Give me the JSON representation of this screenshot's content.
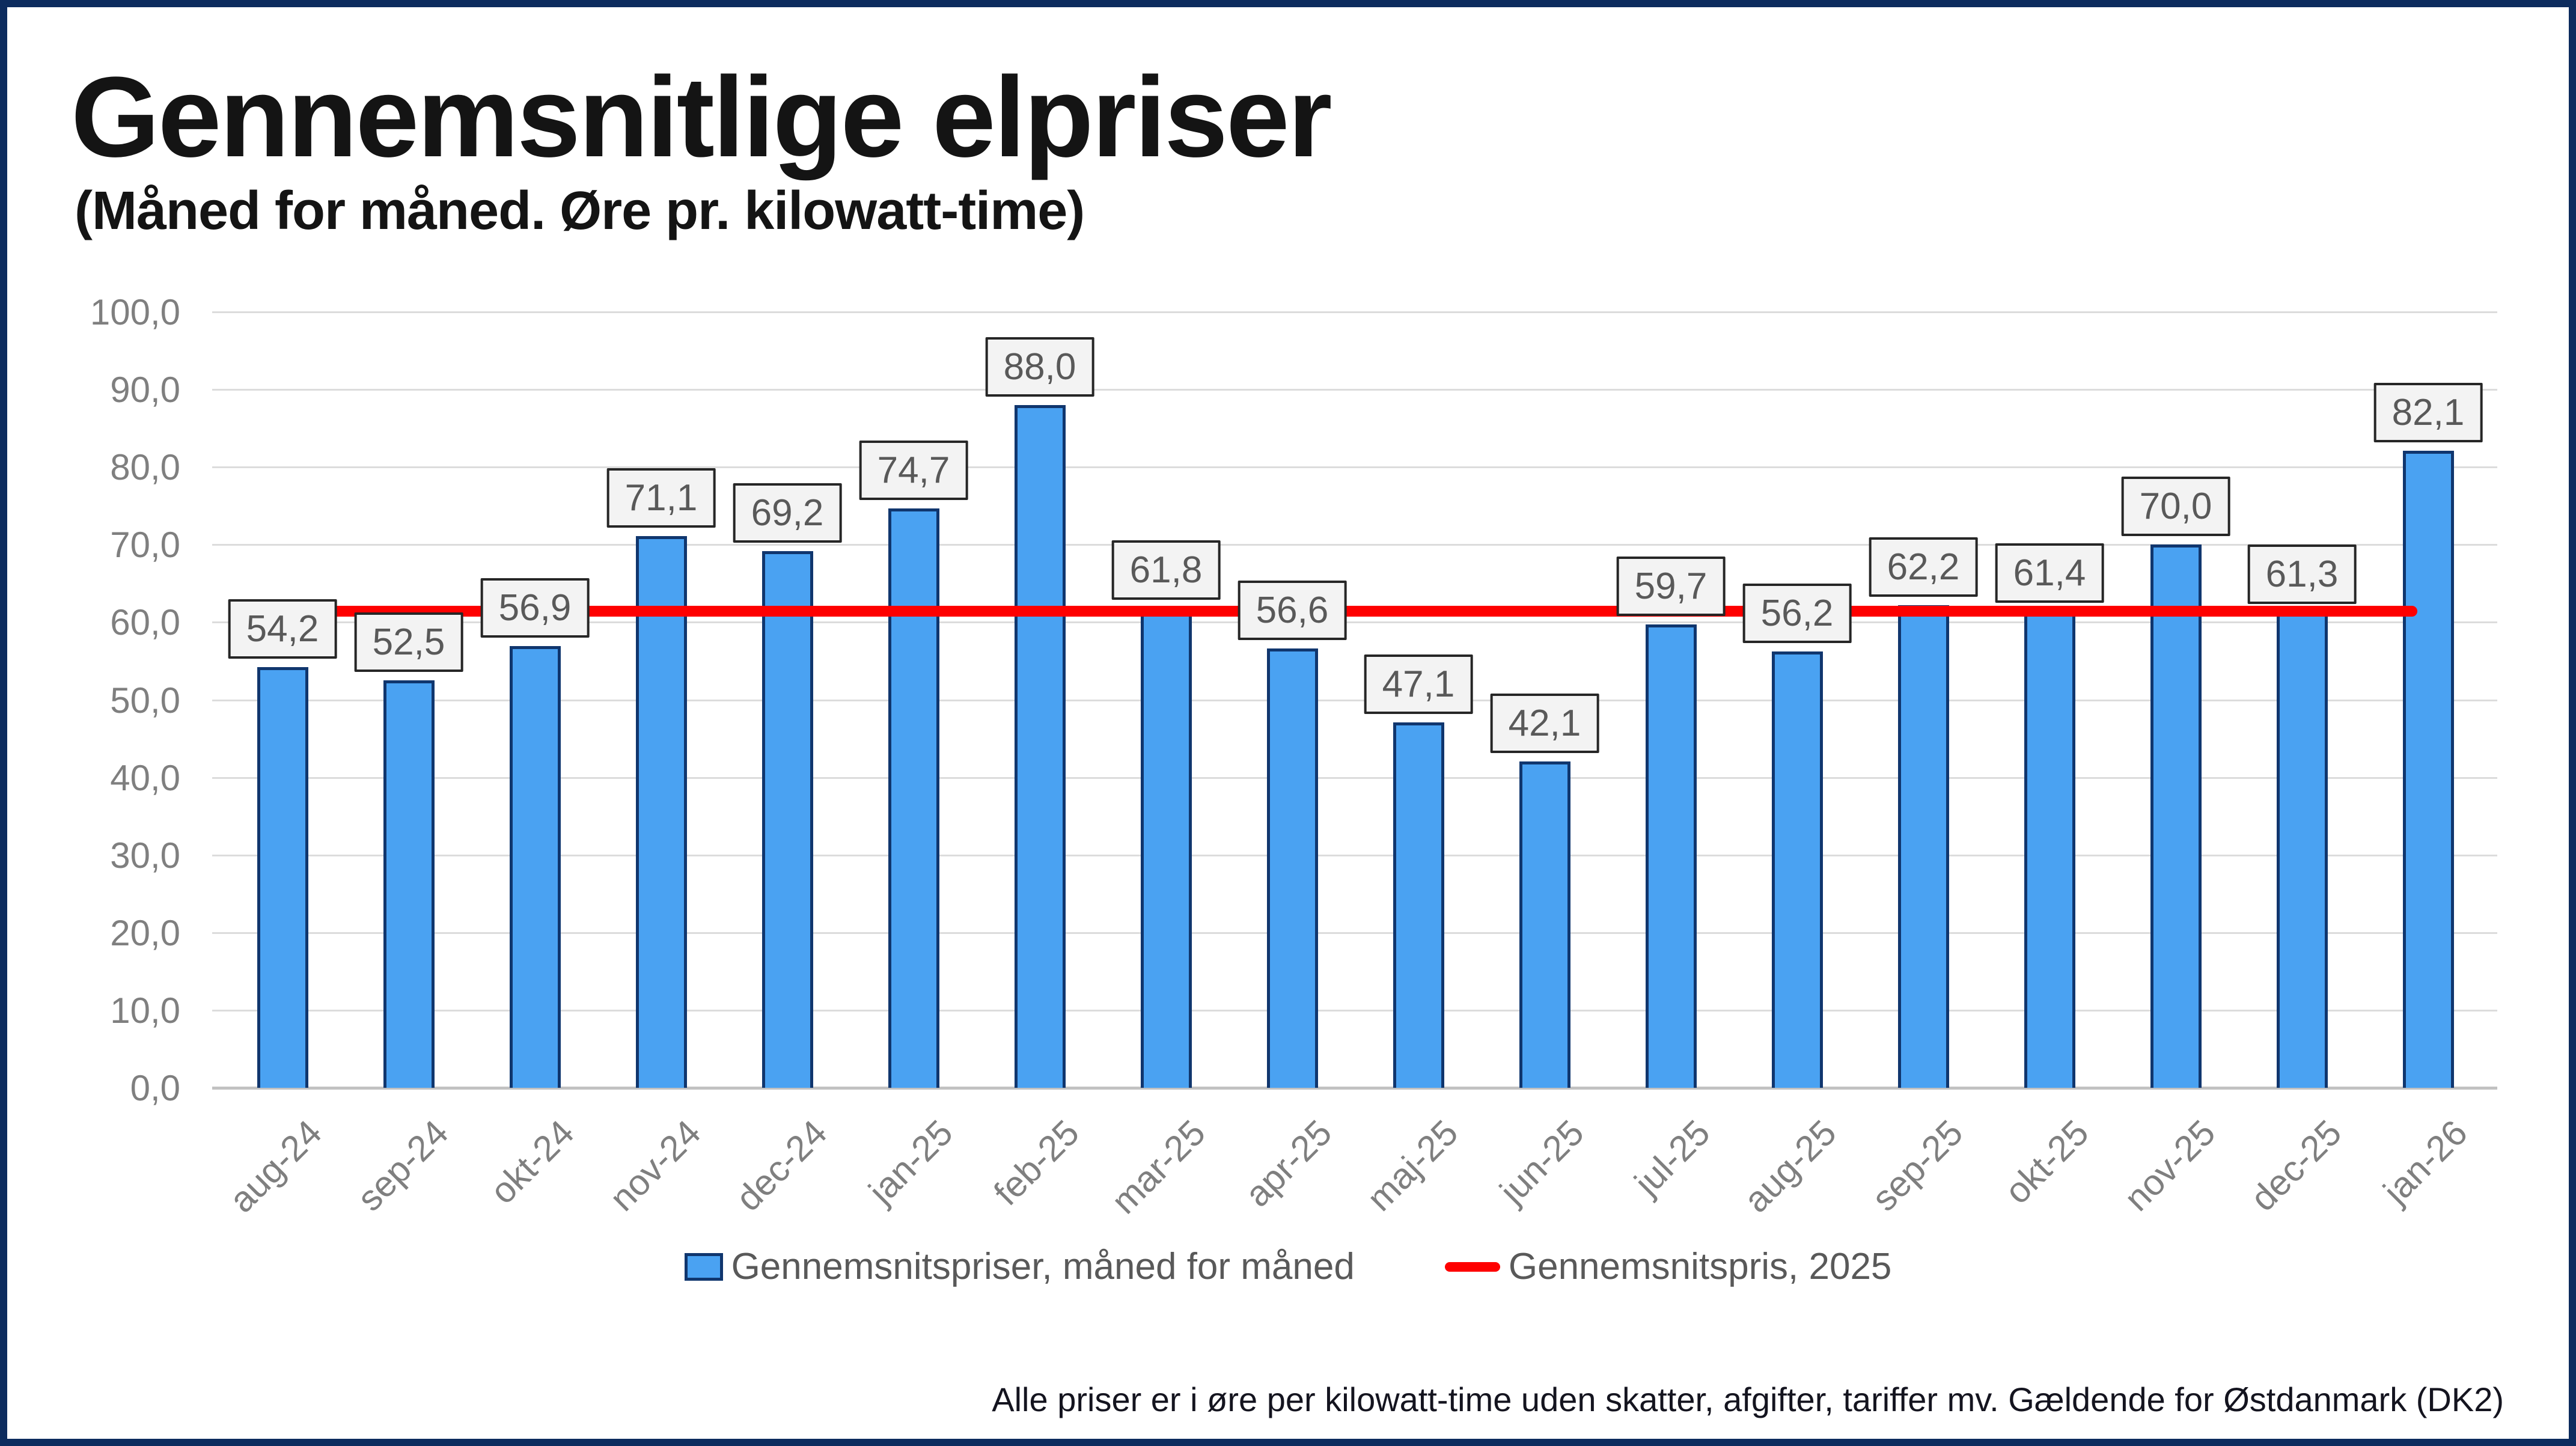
{
  "page": {
    "title": "Gennemsnitlige elpriser",
    "subtitle": "(Måned for måned. Øre pr. kilowatt-time)",
    "footnote": "Alle priser er i øre per kilowatt-time uden skatter, afgifter, tariffer mv. Gældende for Østdanmark (DK2)"
  },
  "legend": {
    "bars_label": "Gennemsnitspriser, måned for måned",
    "line_label": "Gennemsnitspris, 2025"
  },
  "colors": {
    "frame_navy": "#0d2c5e",
    "bar_fill": "#4aa2f2",
    "bar_border": "#10366e",
    "line_red": "#fe0000",
    "gridline": "#dcdcdc",
    "axis_baseline": "#c2c2c2",
    "tick_text": "#7f7f7f",
    "data_label_text": "#595959",
    "data_label_bg": "#f3f3f3",
    "data_label_border": "#262626"
  },
  "chart_data": {
    "type": "bar",
    "title": "Gennemsnitlige elpriser",
    "subtitle": "(Måned for måned. Øre pr. kilowatt-time)",
    "categories": [
      "aug-24",
      "sep-24",
      "okt-24",
      "nov-24",
      "dec-24",
      "jan-25",
      "feb-25",
      "mar-25",
      "apr-25",
      "maj-25",
      "jun-25",
      "jul-25",
      "aug-25",
      "sep-25",
      "okt-25",
      "nov-25",
      "dec-25",
      "jan-26"
    ],
    "series": [
      {
        "name": "Gennemsnitspriser, måned for måned",
        "type": "bar",
        "values": [
          54.2,
          52.5,
          56.9,
          71.1,
          69.2,
          74.7,
          88.0,
          61.8,
          56.6,
          47.1,
          42.1,
          59.7,
          56.2,
          62.2,
          61.4,
          70.0,
          61.3,
          82.1
        ],
        "labels": [
          "54,2",
          "52,5",
          "56,9",
          "71,1",
          "69,2",
          "74,7",
          "88,0",
          "61,8",
          "56,6",
          "47,1",
          "42,1",
          "59,7",
          "56,2",
          "62,2",
          "61,4",
          "70,0",
          "61,3",
          "82,1"
        ]
      },
      {
        "name": "Gennemsnitspris, 2025",
        "type": "line",
        "value": 61.4
      }
    ],
    "y_axis": {
      "min": 0,
      "max": 100,
      "step": 10,
      "tick_values": [
        0,
        10,
        20,
        30,
        40,
        50,
        60,
        70,
        80,
        90,
        100
      ],
      "tick_labels": [
        "0,0",
        "10,0",
        "20,0",
        "30,0",
        "40,0",
        "50,0",
        "60,0",
        "70,0",
        "80,0",
        "90,0",
        "100,0"
      ]
    },
    "x_axis": {
      "label_rotation_deg": -45
    },
    "grid": "horizontal",
    "legend_position": "bottom",
    "ylim": [
      0,
      100
    ]
  }
}
